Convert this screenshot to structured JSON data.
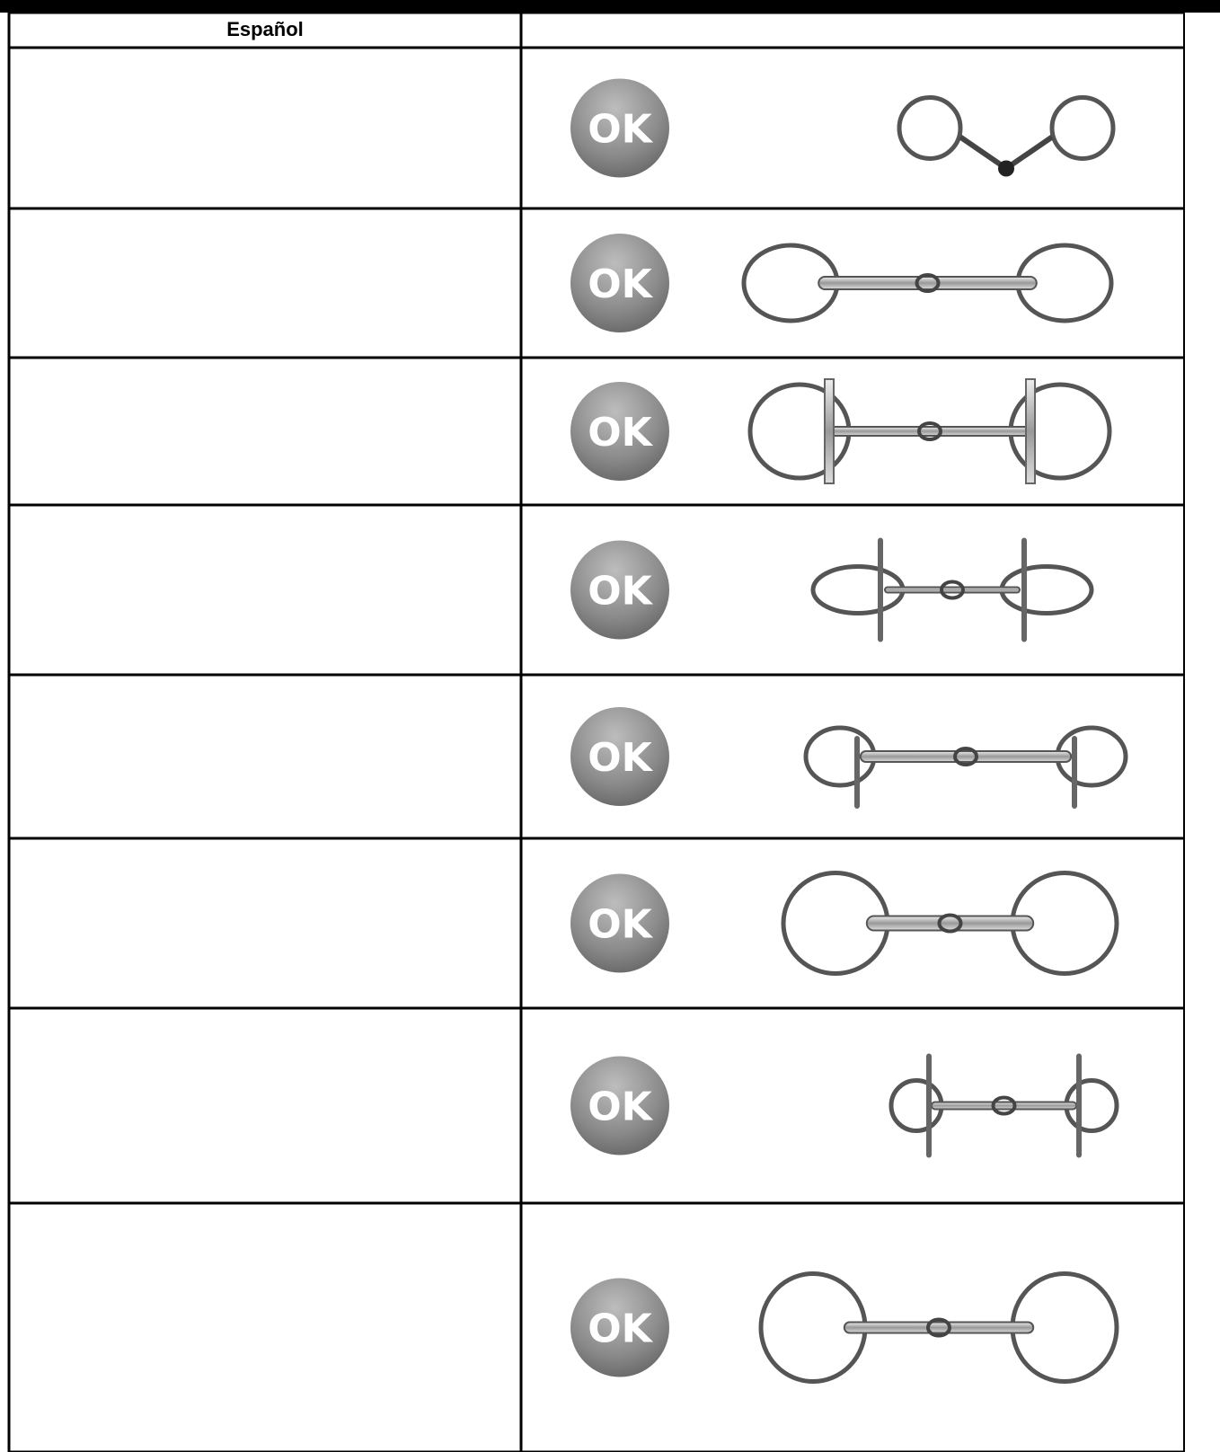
{
  "table": {
    "header": {
      "language": "Español"
    },
    "rows": [
      {
        "status": "OK"
      },
      {
        "status": "OK"
      },
      {
        "status": "OK"
      },
      {
        "status": "OK"
      },
      {
        "status": "OK"
      },
      {
        "status": "OK"
      },
      {
        "status": "OK"
      },
      {
        "status": "OK"
      }
    ]
  }
}
